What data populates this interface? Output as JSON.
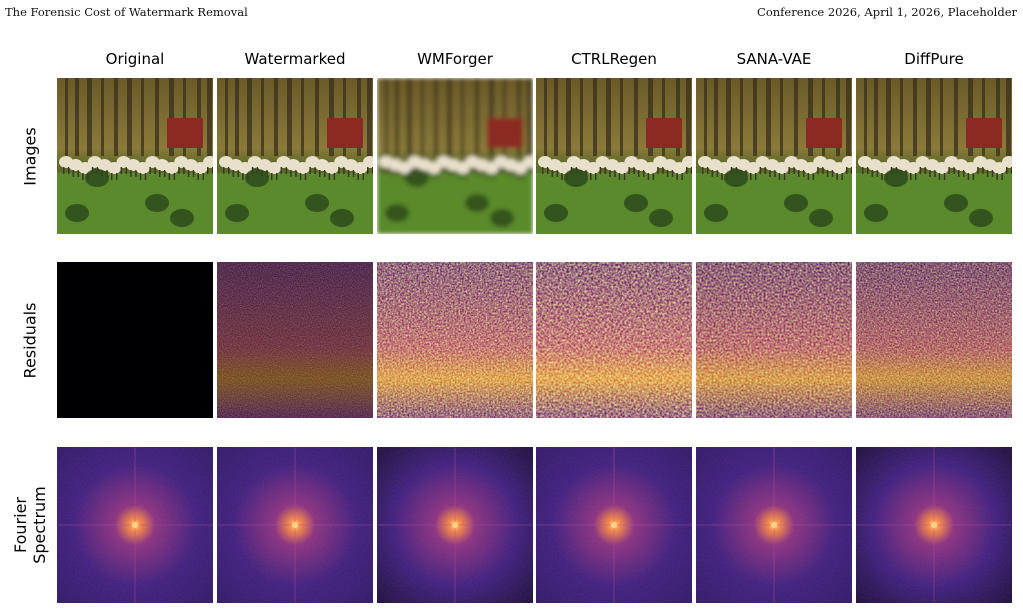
{
  "header": {
    "left": "The Forensic Cost of Watermark Removal",
    "right": "Conference 2026, April 1, 2026, Placeholder"
  },
  "figure": {
    "columns": [
      {
        "id": "original",
        "label": "Original"
      },
      {
        "id": "watermarked",
        "label": "Watermarked"
      },
      {
        "id": "wmforger",
        "label": "WMForger"
      },
      {
        "id": "ctrlregen",
        "label": "CTRLRegen"
      },
      {
        "id": "sana-vae",
        "label": "SANA-VAE"
      },
      {
        "id": "diffpure",
        "label": "DiffPure"
      }
    ],
    "rows": [
      {
        "id": "images",
        "label": "Images"
      },
      {
        "id": "residuals",
        "label": "Residuals"
      },
      {
        "id": "fourier",
        "label": "Fourier\nSpectrum"
      }
    ],
    "colors": {
      "residual_low": "#000004",
      "residual_mid": "#7b1f8f",
      "residual_high": "#fcffa4",
      "spectrum_base": "#3a1c78",
      "spectrum_peak": "#f98c3a"
    }
  }
}
